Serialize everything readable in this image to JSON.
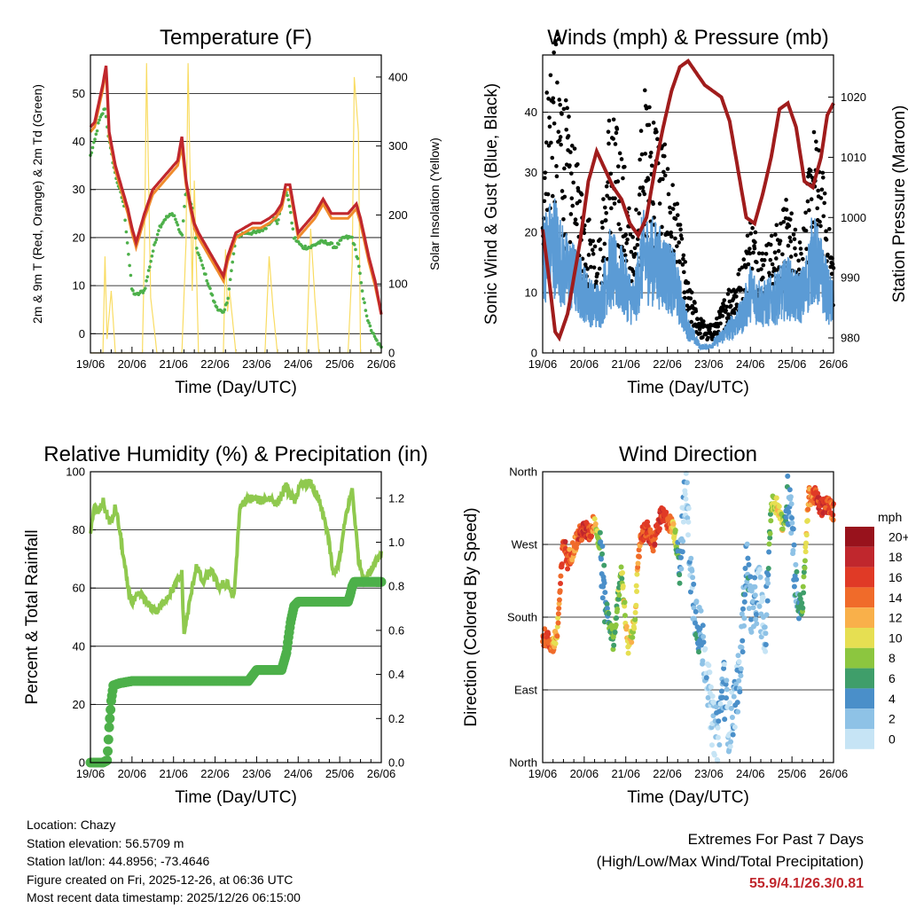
{
  "chart_data": [
    {
      "id": "temp",
      "type": "line",
      "title": "Temperature (F)",
      "xlabel": "Time (Day/UTC)",
      "ylabel": "2m & 9m T (Red, Orange) & 2m Td (Green)",
      "ylabel_right": "Solar Insolation (Yellow)",
      "xticks": [
        "19/06",
        "20/06",
        "21/06",
        "22/06",
        "23/06",
        "24/06",
        "25/06",
        "26/06"
      ],
      "ylim": [
        -4,
        58
      ],
      "yticks": [
        0,
        10,
        20,
        30,
        40,
        50
      ],
      "ylim_right": [
        0,
        432
      ],
      "yticks_right": [
        0,
        100,
        200,
        300,
        400
      ],
      "series": [
        {
          "name": "Solar Insolation",
          "color": "#f9dc63",
          "axis": "right",
          "x": [
            0,
            0.3,
            0.35,
            0.4,
            0.5,
            0.6,
            0.7,
            0.8,
            1.0,
            1.25,
            1.3,
            1.35,
            1.45,
            1.6,
            1.9,
            2.2,
            2.3,
            2.35,
            2.45,
            2.5,
            2.6,
            2.85,
            3.2,
            3.25,
            3.3,
            3.35,
            3.5,
            3.85,
            4.2,
            4.3,
            4.4,
            4.5,
            4.85,
            5.2,
            5.3,
            5.4,
            5.5,
            5.85,
            6.2,
            6.3,
            6.35,
            6.45,
            6.5,
            6.6,
            6.85,
            7.0
          ],
          "y": [
            0,
            0,
            140,
            20,
            90,
            0,
            0,
            0,
            0,
            0,
            150,
            420,
            80,
            0,
            0,
            0,
            160,
            420,
            90,
            250,
            0,
            0,
            0,
            150,
            60,
            90,
            0,
            0,
            0,
            140,
            60,
            0,
            0,
            0,
            180,
            80,
            0,
            0,
            0,
            130,
            400,
            320,
            0,
            0,
            0,
            0
          ]
        },
        {
          "name": "2m Td",
          "color": "#4db04a",
          "axis": "left",
          "x": [
            0,
            0.1,
            0.2,
            0.35,
            0.45,
            0.6,
            0.8,
            0.9,
            1.0,
            1.1,
            1.3,
            1.5,
            1.65,
            1.8,
            2.0,
            2.2,
            2.3,
            2.45,
            2.55,
            2.7,
            2.85,
            3.0,
            3.2,
            3.3,
            3.5,
            3.7,
            3.85,
            4.0,
            4.2,
            4.4,
            4.5,
            4.65,
            4.75,
            4.9,
            5.1,
            5.3,
            5.5,
            5.7,
            5.9,
            6.1,
            6.3,
            6.45,
            6.55,
            6.7,
            6.85,
            7.0
          ],
          "y": [
            37,
            40,
            44,
            47,
            40,
            33,
            27,
            18,
            9,
            8,
            9,
            17,
            22,
            24,
            25,
            20,
            30,
            26,
            18,
            14,
            10,
            6,
            4,
            7,
            20,
            21,
            21,
            21,
            22,
            24,
            23,
            29,
            29,
            20,
            18,
            18,
            19,
            19,
            18,
            20,
            20,
            15,
            8,
            2,
            -1,
            -3
          ]
        },
        {
          "name": "9m T",
          "color": "#f08b2c",
          "axis": "left",
          "x": [
            0,
            0.1,
            0.2,
            0.3,
            0.38,
            0.45,
            0.6,
            0.8,
            0.9,
            1.0,
            1.1,
            1.3,
            1.5,
            1.7,
            1.9,
            2.1,
            2.2,
            2.3,
            2.4,
            2.5,
            2.6,
            2.8,
            3.0,
            3.2,
            3.3,
            3.5,
            3.7,
            3.9,
            4.1,
            4.3,
            4.45,
            4.6,
            4.7,
            4.8,
            5.0,
            5.2,
            5.4,
            5.6,
            5.8,
            6.0,
            6.2,
            6.4,
            6.5,
            6.7,
            6.85,
            7.0
          ],
          "y": [
            42,
            43,
            47,
            51,
            55,
            41,
            34,
            28,
            25,
            21,
            18,
            24,
            29,
            31,
            33,
            35,
            39,
            31,
            26,
            22,
            20,
            17,
            14,
            11,
            15,
            20,
            21,
            22,
            22,
            23,
            24,
            26,
            30,
            30,
            20,
            22,
            24,
            27,
            24,
            24,
            24,
            26,
            23,
            15,
            10,
            4
          ]
        },
        {
          "name": "2m T",
          "color": "#c0272d",
          "axis": "left",
          "x": [
            0,
            0.1,
            0.2,
            0.3,
            0.38,
            0.45,
            0.6,
            0.8,
            0.9,
            1.0,
            1.1,
            1.3,
            1.5,
            1.7,
            1.9,
            2.1,
            2.2,
            2.3,
            2.4,
            2.5,
            2.6,
            2.8,
            3.0,
            3.2,
            3.3,
            3.5,
            3.7,
            3.9,
            4.1,
            4.3,
            4.45,
            4.6,
            4.7,
            4.8,
            5.0,
            5.2,
            5.4,
            5.6,
            5.8,
            6.0,
            6.2,
            6.4,
            6.5,
            6.7,
            6.85,
            7.0
          ],
          "y": [
            43,
            44,
            48,
            52,
            56,
            42,
            35,
            29,
            26,
            22,
            19,
            25,
            30,
            32,
            34,
            36,
            41,
            32,
            27,
            23,
            21,
            18,
            15,
            12,
            16,
            21,
            22,
            23,
            23,
            24,
            25,
            27,
            31,
            31,
            21,
            23,
            25,
            28,
            25,
            25,
            25,
            27,
            24,
            16,
            11,
            4
          ]
        }
      ]
    },
    {
      "id": "wind",
      "type": "scatter",
      "title": "Winds (mph) & Pressure (mb)",
      "xlabel": "Time (Day/UTC)",
      "ylabel": "Sonic Wind & Gust (Blue, Black)",
      "ylabel_right": "Station Pressure (Maroon)",
      "xticks": [
        "19/06",
        "20/06",
        "21/06",
        "22/06",
        "23/06",
        "24/06",
        "25/06",
        "26/06"
      ],
      "ylim": [
        0,
        49.5
      ],
      "yticks": [
        0,
        10,
        20,
        30,
        40
      ],
      "ylim_right": [
        977.5,
        1027
      ],
      "yticks_right": [
        980,
        990,
        1000,
        1010,
        1020
      ],
      "series": [
        {
          "name": "Gust",
          "color": "#000000",
          "axis": "left",
          "x": [
            0,
            0.3,
            0.5,
            0.8,
            1.0,
            1.2,
            1.4,
            1.6,
            1.9,
            2.2,
            2.4,
            2.7,
            3.0,
            3.2,
            3.5,
            3.8,
            4.0,
            4.2,
            4.5,
            4.8,
            5.0,
            5.3,
            5.6,
            5.9,
            6.1,
            6.3,
            6.5,
            6.7,
            6.9,
            7.0
          ],
          "y": [
            26,
            40,
            30,
            22,
            18,
            14,
            13,
            28,
            24,
            12,
            30,
            28,
            22,
            18,
            8,
            4,
            3,
            4,
            8,
            10,
            16,
            12,
            14,
            18,
            14,
            15,
            26,
            22,
            14,
            12
          ]
        },
        {
          "name": "Sonic Wind",
          "color": "#5b9bd5",
          "axis": "left",
          "x": [
            0,
            0.3,
            0.5,
            0.8,
            1.0,
            1.2,
            1.4,
            1.6,
            1.9,
            2.2,
            2.4,
            2.7,
            3.0,
            3.2,
            3.5,
            3.8,
            4.0,
            4.2,
            4.5,
            4.8,
            5.0,
            5.3,
            5.6,
            5.9,
            6.1,
            6.3,
            6.5,
            6.7,
            6.9,
            7.0
          ],
          "y": [
            16,
            18,
            14,
            12,
            10,
            8,
            8,
            14,
            12,
            8,
            16,
            15,
            13,
            11,
            4,
            1,
            1,
            2,
            4,
            6,
            10,
            8,
            9,
            11,
            9,
            10,
            16,
            13,
            9,
            8
          ]
        },
        {
          "name": "Station Pressure",
          "color": "#a01c1c",
          "axis": "right",
          "x": [
            0,
            0.15,
            0.3,
            0.4,
            0.6,
            0.9,
            1.1,
            1.3,
            1.5,
            1.7,
            1.9,
            2.1,
            2.3,
            2.5,
            2.7,
            2.9,
            3.1,
            3.3,
            3.5,
            3.7,
            3.9,
            4.1,
            4.3,
            4.5,
            4.7,
            4.9,
            5.1,
            5.3,
            5.5,
            5.7,
            5.9,
            6.1,
            6.3,
            6.5,
            6.7,
            6.85,
            7.0
          ],
          "y": [
            998,
            990,
            981,
            980,
            984,
            996,
            1006,
            1011,
            1008,
            1005,
            1003,
            999,
            997,
            1000,
            1008,
            1015,
            1021,
            1025,
            1026,
            1024,
            1022,
            1021,
            1020,
            1016,
            1008,
            1000,
            999,
            1004,
            1010,
            1018,
            1019,
            1015,
            1006,
            1005,
            1010,
            1017,
            1019
          ]
        }
      ]
    },
    {
      "id": "rh",
      "type": "line",
      "title": "Relative Humidity (%) & Precipitation (in)",
      "xlabel": "Time (Day/UTC)",
      "ylabel": "Percent & Total Rainfall",
      "xticks": [
        "19/06",
        "20/06",
        "21/06",
        "22/06",
        "23/06",
        "24/06",
        "25/06",
        "26/06"
      ],
      "ylim": [
        0,
        100
      ],
      "yticks": [
        0,
        20,
        40,
        60,
        80,
        100
      ],
      "ylim_right": [
        0,
        1.32
      ],
      "yticks_right": [
        0.0,
        0.2,
        0.4,
        0.6,
        0.8,
        1.0,
        1.2
      ],
      "series": [
        {
          "name": "Relative Humidity",
          "color": "#8fc94e",
          "axis": "left",
          "x": [
            0,
            0.1,
            0.2,
            0.3,
            0.4,
            0.5,
            0.6,
            0.7,
            0.8,
            0.9,
            1.0,
            1.2,
            1.4,
            1.6,
            1.8,
            2.0,
            2.2,
            2.25,
            2.35,
            2.45,
            2.55,
            2.7,
            2.9,
            3.1,
            3.3,
            3.45,
            3.6,
            3.75,
            3.9,
            4.1,
            4.3,
            4.5,
            4.7,
            4.9,
            5.1,
            5.3,
            5.5,
            5.7,
            5.85,
            6.0,
            6.15,
            6.3,
            6.45,
            6.6,
            6.8,
            7.0
          ],
          "y": [
            80,
            88,
            86,
            90,
            85,
            82,
            88,
            80,
            70,
            60,
            55,
            58,
            54,
            52,
            56,
            60,
            65,
            44,
            52,
            60,
            68,
            62,
            66,
            60,
            62,
            56,
            88,
            90,
            91,
            90,
            91,
            89,
            95,
            90,
            96,
            96,
            90,
            80,
            64,
            70,
            85,
            94,
            70,
            62,
            68,
            72
          ]
        },
        {
          "name": "Total Rainfall",
          "color": "#4db04a",
          "axis": "right",
          "x": [
            0,
            0.3,
            0.4,
            0.42,
            0.45,
            0.5,
            0.55,
            0.7,
            1.0,
            2.0,
            2.5,
            3.0,
            3.8,
            4.0,
            4.4,
            4.6,
            4.72,
            4.76,
            4.82,
            4.9,
            5.0,
            6.0,
            6.2,
            6.25,
            6.3,
            6.35,
            7.0
          ],
          "y": [
            0.0,
            0.0,
            0.01,
            0.06,
            0.16,
            0.28,
            0.35,
            0.36,
            0.37,
            0.37,
            0.37,
            0.37,
            0.37,
            0.42,
            0.42,
            0.42,
            0.5,
            0.56,
            0.64,
            0.71,
            0.73,
            0.73,
            0.73,
            0.76,
            0.8,
            0.82,
            0.82
          ]
        }
      ]
    },
    {
      "id": "dir",
      "type": "scatter",
      "title": "Wind Direction",
      "xlabel": "Time (Day/UTC)",
      "ylabel": "Direction (Colored By Speed)",
      "xticks": [
        "19/06",
        "20/06",
        "21/06",
        "22/06",
        "23/06",
        "24/06",
        "25/06",
        "26/06"
      ],
      "ylim": [
        0,
        360
      ],
      "ytick_values": [
        0,
        90,
        180,
        270,
        360
      ],
      "yticks": [
        "North",
        "East",
        "South",
        "West",
        "North"
      ],
      "colorbar_title": "mph",
      "colorbar_labels": [
        "0",
        "2",
        "4",
        "6",
        "8",
        "10",
        "12",
        "14",
        "16",
        "18",
        "20+"
      ],
      "colorbar_colors": [
        "#c6e4f5",
        "#8ec2e6",
        "#4a8fc9",
        "#3f9e6a",
        "#8cc63f",
        "#e6df52",
        "#f9b04a",
        "#f06b2a",
        "#e03a26",
        "#c0272d",
        "#98121c"
      ],
      "x": [
        0.05,
        0.15,
        0.25,
        0.35,
        0.5,
        0.6,
        0.7,
        0.85,
        1.0,
        1.15,
        1.25,
        1.4,
        1.5,
        1.7,
        1.9,
        2.05,
        2.2,
        2.35,
        2.5,
        2.65,
        2.85,
        3.0,
        3.15,
        3.3,
        3.45,
        3.6,
        3.75,
        3.95,
        4.05,
        4.2,
        4.35,
        4.5,
        4.6,
        4.75,
        4.9,
        5.05,
        5.2,
        5.35,
        5.5,
        5.65,
        5.8,
        5.95,
        6.1,
        6.25,
        6.4,
        6.55,
        6.7,
        6.85,
        7.0
      ],
      "y": [
        155,
        150,
        145,
        160,
        275,
        250,
        260,
        280,
        288,
        285,
        300,
        260,
        200,
        150,
        240,
        140,
        170,
        280,
        290,
        270,
        305,
        300,
        290,
        250,
        340,
        210,
        170,
        120,
        60,
        30,
        100,
        40,
        70,
        110,
        250,
        180,
        220,
        150,
        320,
        320,
        290,
        340,
        210,
        190,
        330,
        330,
        315,
        320,
        310
      ],
      "speeds": [
        16,
        15,
        14,
        13,
        17,
        16,
        14,
        16,
        18,
        16,
        14,
        5,
        6,
        8,
        9,
        12,
        10,
        15,
        17,
        16,
        18,
        16,
        12,
        5,
        2,
        3,
        6,
        2,
        1,
        3,
        4,
        2,
        3,
        4,
        5,
        4,
        3,
        2,
        9,
        12,
        10,
        3,
        5,
        7,
        13,
        16,
        18,
        17,
        15
      ]
    }
  ],
  "footer": {
    "location": "Location: Chazy",
    "elevation": "Station elevation: 56.5709 m",
    "latlon": "Station lat/lon: 44.8956; -73.4646",
    "created": "Figure created on Fri, 2025-12-26, at 06:36 UTC",
    "recent": "Most recent data timestamp: 2025/12/26 06:15:00"
  },
  "extremes": {
    "title": "Extremes For Past 7 Days",
    "subtitle": "(High/Low/Max Wind/Total Precipitation)",
    "values": "55.9/4.1/26.3/0.81"
  }
}
